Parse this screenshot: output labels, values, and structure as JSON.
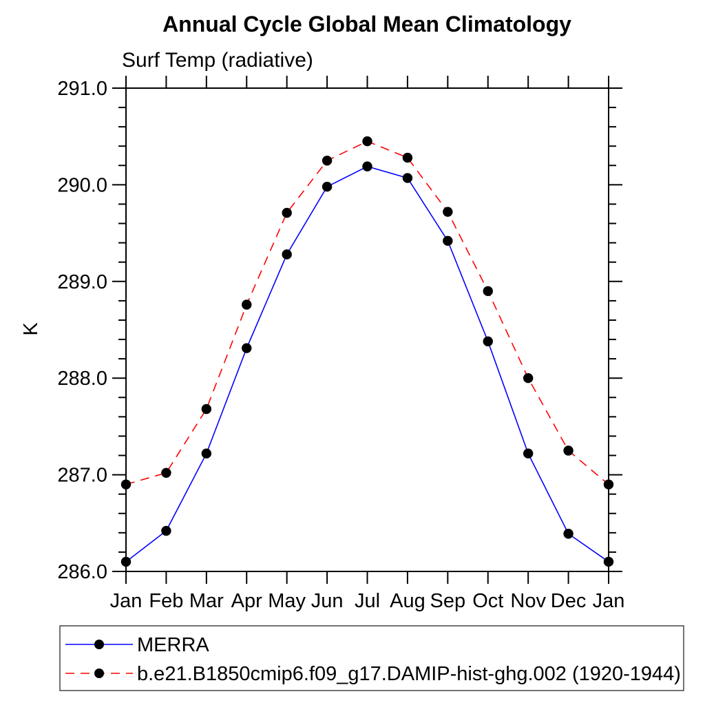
{
  "chart_data": {
    "type": "line",
    "title": "Annual Cycle Global Mean Climatology",
    "subtitle": "Surf Temp (radiative)",
    "ylabel": "K",
    "xlabel": "",
    "categories": [
      "Jan",
      "Feb",
      "Mar",
      "Apr",
      "May",
      "Jun",
      "Jul",
      "Aug",
      "Sep",
      "Oct",
      "Nov",
      "Dec",
      "Jan"
    ],
    "ylim": [
      286.0,
      291.0
    ],
    "ytick_values": [
      286.0,
      287.0,
      288.0,
      289.0,
      290.0,
      291.0
    ],
    "ytick_labels": [
      "286.0",
      "287.0",
      "288.0",
      "289.0",
      "290.0",
      "291.0"
    ],
    "y_minor_tick_step": 0.2,
    "grid": false,
    "legend_position": "bottom-left-box",
    "series": [
      {
        "name": "MERRA",
        "color": "#0000ff",
        "line_style": "solid",
        "marker": "filled-circle",
        "marker_color": "#000000",
        "values": [
          286.1,
          286.42,
          287.22,
          288.31,
          289.28,
          289.98,
          290.19,
          290.07,
          289.42,
          288.38,
          287.22,
          286.39,
          286.1
        ]
      },
      {
        "name": "b.e21.B1850cmip6.f09_g17.DAMIP-hist-ghg.002 (1920-1944)",
        "color": "#ff0000",
        "line_style": "dashed",
        "marker": "filled-circle",
        "marker_color": "#000000",
        "values": [
          286.9,
          287.02,
          287.68,
          288.76,
          289.71,
          290.25,
          290.45,
          290.28,
          289.72,
          288.9,
          288.0,
          287.25,
          286.9
        ]
      }
    ]
  }
}
